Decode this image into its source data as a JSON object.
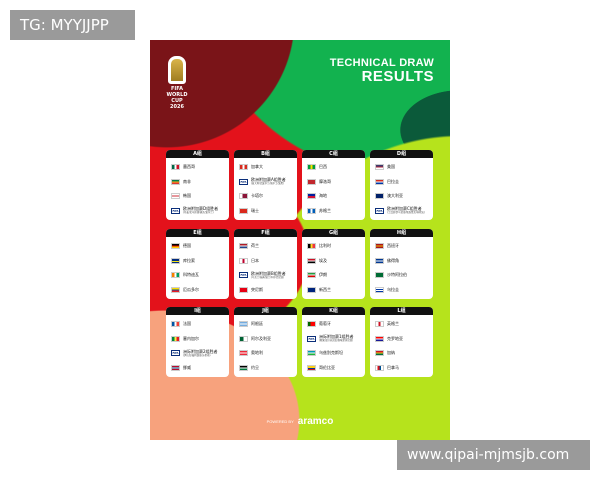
{
  "watermarks": {
    "top_left": "TG: MYYJJPP",
    "bottom_right": "www.qipai-mjmsjb.com"
  },
  "poster": {
    "logo": {
      "line1": "FIFA",
      "line2": "WORLD CUP",
      "line3": "2026"
    },
    "title": {
      "line1": "TECHNICAL DRAW",
      "line2": "RESULTS"
    },
    "footer": {
      "powered_by": "POWERED BY",
      "brand": "aramco"
    },
    "colors": {
      "dark_red": "#7a1418",
      "red": "#e3121b",
      "green": "#12b24f",
      "lime": "#b6e31c",
      "salmon": "#f7a27d",
      "purple": "#9b6cf0",
      "dark_green": "#0b5a3a"
    },
    "groups": [
      {
        "name": "A组",
        "teams": [
          {
            "name": "墨西哥",
            "flag": [
              "#006847",
              "#ffffff",
              "#ce1126"
            ],
            "dir": "v"
          },
          {
            "name": "南非",
            "flag": [
              "#007a4d",
              "#ffb612",
              "#de3831"
            ],
            "dir": "h"
          },
          {
            "name": "韩国",
            "flag": [
              "#ffffff",
              "#cd2e3a",
              "#ffffff"
            ],
            "dir": "h"
          },
          {
            "name": "欧洲附加赛D组胜者",
            "sub": "(丹麦/北马其顿/捷克/爱尔兰)",
            "fifa": true
          }
        ]
      },
      {
        "name": "B组",
        "teams": [
          {
            "name": "加拿大",
            "flag": [
              "#d52b1e",
              "#ffffff",
              "#d52b1e"
            ],
            "dir": "v"
          },
          {
            "name": "欧洲附加赛A组胜者",
            "sub": "(意大利/北爱尔兰/威尔士/波黑)",
            "fifa": true
          },
          {
            "name": "卡塔尔",
            "flag": [
              "#ffffff",
              "#8a1538",
              "#8a1538"
            ],
            "dir": "v"
          },
          {
            "name": "瑞士",
            "flag": [
              "#da291c",
              "#da291c",
              "#da291c"
            ],
            "dir": "v"
          }
        ]
      },
      {
        "name": "C组",
        "teams": [
          {
            "name": "巴西",
            "flag": [
              "#009c3b",
              "#ffdf00",
              "#009c3b"
            ],
            "dir": "v"
          },
          {
            "name": "摩洛哥",
            "flag": [
              "#c1272d",
              "#c1272d",
              "#c1272d"
            ],
            "dir": "v"
          },
          {
            "name": "海地",
            "flag": [
              "#00209f",
              "#d21034"
            ],
            "dir": "h"
          },
          {
            "name": "苏格兰",
            "flag": [
              "#005eb8",
              "#ffffff",
              "#005eb8"
            ],
            "dir": "v"
          }
        ]
      },
      {
        "name": "D组",
        "teams": [
          {
            "name": "美国",
            "flag": [
              "#3c3b6e",
              "#b22234",
              "#ffffff"
            ],
            "dir": "h"
          },
          {
            "name": "巴拉圭",
            "flag": [
              "#d52b1e",
              "#ffffff",
              "#0038a8"
            ],
            "dir": "h"
          },
          {
            "name": "澳大利亚",
            "flag": [
              "#012169",
              "#012169"
            ],
            "dir": "h"
          },
          {
            "name": "欧洲附加赛C组胜者",
            "sub": "(土耳其/罗马尼亚/斯洛伐克/科索沃)",
            "fifa": true
          }
        ]
      },
      {
        "name": "E组",
        "teams": [
          {
            "name": "德国",
            "flag": [
              "#000000",
              "#dd0000",
              "#ffce00"
            ],
            "dir": "h"
          },
          {
            "name": "库拉索",
            "flag": [
              "#002b7f",
              "#002b7f",
              "#f9e814",
              "#002b7f"
            ],
            "dir": "h"
          },
          {
            "name": "科特迪瓦",
            "flag": [
              "#f77f00",
              "#ffffff",
              "#009e60"
            ],
            "dir": "v"
          },
          {
            "name": "厄瓜多尔",
            "flag": [
              "#ffdd00",
              "#034ea2",
              "#ed1c24"
            ],
            "dir": "h"
          }
        ]
      },
      {
        "name": "F组",
        "teams": [
          {
            "name": "荷兰",
            "flag": [
              "#ae1c28",
              "#ffffff",
              "#21468b"
            ],
            "dir": "h"
          },
          {
            "name": "日本",
            "flag": [
              "#ffffff",
              "#bc002d",
              "#ffffff"
            ],
            "dir": "v"
          },
          {
            "name": "欧洲附加赛B组胜者",
            "sub": "(乌克兰/瑞典/波兰/阿尔巴尼亚)",
            "fifa": true
          },
          {
            "name": "突尼斯",
            "flag": [
              "#e70013",
              "#e70013"
            ],
            "dir": "h"
          }
        ]
      },
      {
        "name": "G组",
        "teams": [
          {
            "name": "比利时",
            "flag": [
              "#000000",
              "#fdda24",
              "#ef3340"
            ],
            "dir": "v"
          },
          {
            "name": "埃及",
            "flag": [
              "#ce1126",
              "#ffffff",
              "#000000"
            ],
            "dir": "h"
          },
          {
            "name": "伊朗",
            "flag": [
              "#239f40",
              "#ffffff",
              "#da0000"
            ],
            "dir": "h"
          },
          {
            "name": "新西兰",
            "flag": [
              "#00247d",
              "#00247d"
            ],
            "dir": "h"
          }
        ]
      },
      {
        "name": "H组",
        "teams": [
          {
            "name": "西班牙",
            "flag": [
              "#aa151b",
              "#f1bf00",
              "#aa151b"
            ],
            "dir": "h"
          },
          {
            "name": "佛得角",
            "flag": [
              "#003893",
              "#ffffff",
              "#003893"
            ],
            "dir": "h"
          },
          {
            "name": "沙特阿拉伯",
            "flag": [
              "#006c35",
              "#006c35"
            ],
            "dir": "h"
          },
          {
            "name": "乌拉圭",
            "flag": [
              "#ffffff",
              "#0038a8",
              "#ffffff",
              "#0038a8"
            ],
            "dir": "h"
          }
        ]
      },
      {
        "name": "I组",
        "teams": [
          {
            "name": "法国",
            "flag": [
              "#0055a4",
              "#ffffff",
              "#ef4135"
            ],
            "dir": "v"
          },
          {
            "name": "塞内加尔",
            "flag": [
              "#00853f",
              "#fdef42",
              "#e31b23"
            ],
            "dir": "v"
          },
          {
            "name": "洲际附加赛2组胜者",
            "sub": "(伊拉克/玻利维亚/苏里南)",
            "fifa": true
          },
          {
            "name": "挪威",
            "flag": [
              "#ba0c2f",
              "#ffffff",
              "#00205b",
              "#ffffff",
              "#ba0c2f"
            ],
            "dir": "h"
          }
        ]
      },
      {
        "name": "J组",
        "teams": [
          {
            "name": "阿根廷",
            "flag": [
              "#74acdf",
              "#ffffff",
              "#74acdf"
            ],
            "dir": "h"
          },
          {
            "name": "阿尔及利亚",
            "flag": [
              "#006233",
              "#ffffff"
            ],
            "dir": "v"
          },
          {
            "name": "奥地利",
            "flag": [
              "#ed2939",
              "#ffffff",
              "#ed2939"
            ],
            "dir": "h"
          },
          {
            "name": "约旦",
            "flag": [
              "#000000",
              "#ffffff",
              "#007a3d"
            ],
            "dir": "h"
          }
        ]
      },
      {
        "name": "K组",
        "teams": [
          {
            "name": "葡萄牙",
            "flag": [
              "#006600",
              "#ff0000",
              "#ff0000"
            ],
            "dir": "v"
          },
          {
            "name": "洲际附加赛1组胜者",
            "sub": "(刚果(金)/牙买加/新喀里多尼亚)",
            "fifa": true
          },
          {
            "name": "乌兹别克斯坦",
            "flag": [
              "#0099b5",
              "#ffffff",
              "#1eb53a"
            ],
            "dir": "h"
          },
          {
            "name": "哥伦比亚",
            "flag": [
              "#fcd116",
              "#fcd116",
              "#003893",
              "#ce1126"
            ],
            "dir": "h"
          }
        ]
      },
      {
        "name": "L组",
        "teams": [
          {
            "name": "英格兰",
            "flag": [
              "#ffffff",
              "#ce1124",
              "#ffffff"
            ],
            "dir": "v"
          },
          {
            "name": "克罗地亚",
            "flag": [
              "#ff0000",
              "#ffffff",
              "#171796"
            ],
            "dir": "h"
          },
          {
            "name": "加纳",
            "flag": [
              "#ce1126",
              "#fcd116",
              "#006b3f"
            ],
            "dir": "h"
          },
          {
            "name": "巴拿马",
            "flag": [
              "#ffffff",
              "#da121a",
              "#005293",
              "#ffffff"
            ],
            "dir": "v"
          }
        ]
      }
    ]
  }
}
